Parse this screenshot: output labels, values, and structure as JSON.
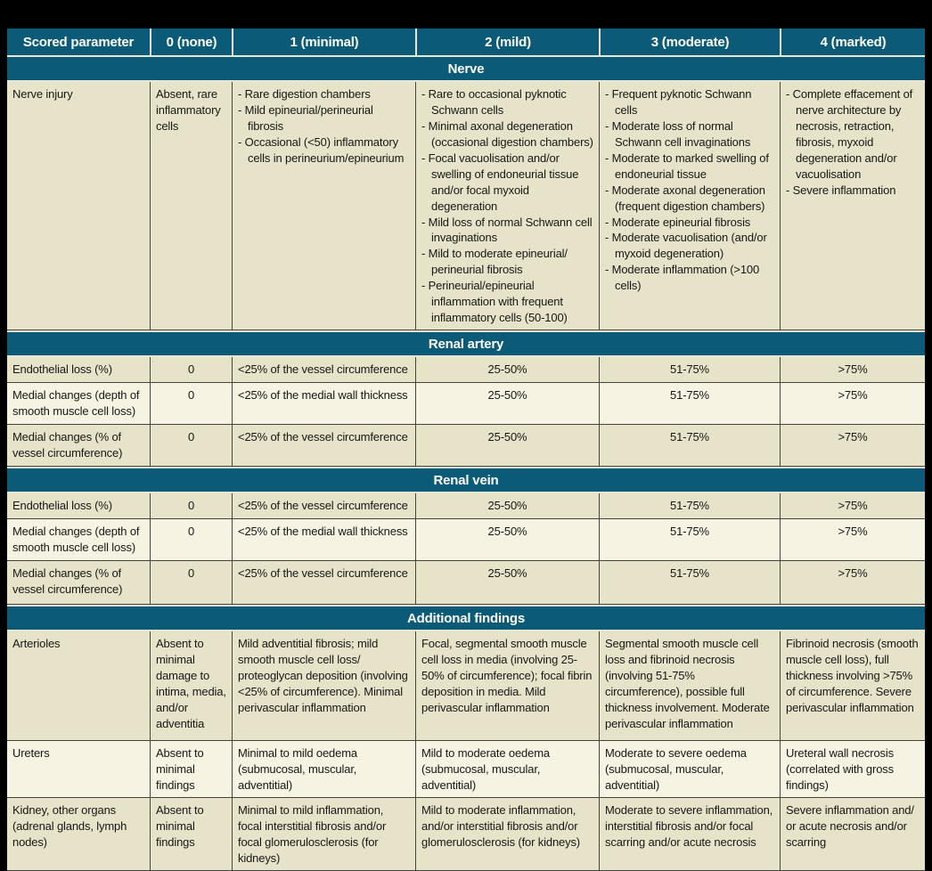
{
  "colors": {
    "teal": "#0b5b78",
    "row_beige": "#e7e3c9",
    "row_cream": "#f6f3e3",
    "frame": "#000000",
    "grid_line": "#45443c"
  },
  "header": {
    "columns": [
      "Scored parameter",
      "0 (none)",
      "1 (minimal)",
      "2 (mild)",
      "3 (moderate)",
      "4 (marked)"
    ]
  },
  "sections": [
    {
      "title": "Nerve",
      "rows": [
        {
          "parameter": "Nerve injury",
          "cells": [
            {
              "text": "Absent, rare inflammatory cells"
            },
            {
              "bullets": [
                "Rare digestion chambers",
                "Mild epineurial/perineurial fibrosis",
                "Occasional (<50) inflammatory cells in perineurium/epineurium"
              ]
            },
            {
              "bullets": [
                "Rare to occasional pyknotic Schwann cells",
                "Minimal axonal degeneration (occasional digestion chambers)",
                "Focal vacuolisation and/or swelling of endoneurial tissue and/or focal myxoid degeneration",
                "Mild loss of normal Schwann cell invaginations",
                "Mild to moderate epineurial/ perineurial fibrosis",
                "Perineurial/epineurial inflammation with frequent inflammatory cells (50-100)"
              ]
            },
            {
              "bullets": [
                "Frequent pyknotic Schwann cells",
                "Moderate loss of normal Schwann cell invaginations",
                "Moderate to marked swelling of endoneurial tissue",
                "Moderate axonal degeneration (frequent digestion chambers)",
                "Moderate epineurial fibrosis",
                "Moderate vacuolisation (and/or myxoid degeneration)",
                "Moderate inflammation (>100 cells)"
              ]
            },
            {
              "bullets": [
                "Complete effacement of nerve architecture by necrosis, retraction, fibrosis, myxoid degeneration and/or vacuolisation",
                "Severe inflammation"
              ]
            }
          ]
        }
      ]
    },
    {
      "title": "Renal artery",
      "rows": [
        {
          "parameter": "Endothelial loss (%)",
          "cells": [
            {
              "text": "0",
              "align": "center"
            },
            {
              "text": "<25% of the vessel circumference"
            },
            {
              "text": "25-50%",
              "align": "center"
            },
            {
              "text": "51-75%",
              "align": "center"
            },
            {
              "text": ">75%",
              "align": "center"
            }
          ]
        },
        {
          "parameter": "Medial changes  (depth of smooth muscle cell loss)",
          "cells": [
            {
              "text": "0",
              "align": "center"
            },
            {
              "text": "<25% of the medial wall thickness"
            },
            {
              "text": "25-50%",
              "align": "center"
            },
            {
              "text": "51-75%",
              "align": "center"
            },
            {
              "text": ">75%",
              "align": "center"
            }
          ]
        },
        {
          "parameter": "Medial changes (% of vessel circumference)",
          "cells": [
            {
              "text": "0",
              "align": "center"
            },
            {
              "text": "<25% of the vessel circumference"
            },
            {
              "text": "25-50%",
              "align": "center"
            },
            {
              "text": "51-75%",
              "align": "center"
            },
            {
              "text": ">75%",
              "align": "center"
            }
          ]
        }
      ]
    },
    {
      "title": "Renal vein",
      "rows": [
        {
          "parameter": "Endothelial loss (%)",
          "cells": [
            {
              "text": "0",
              "align": "center"
            },
            {
              "text": "<25% of the vessel circumference"
            },
            {
              "text": "25-50%",
              "align": "center"
            },
            {
              "text": "51-75%",
              "align": "center"
            },
            {
              "text": ">75%",
              "align": "center"
            }
          ]
        },
        {
          "parameter": "Medial changes (depth of smooth muscle cell loss)",
          "cells": [
            {
              "text": "0",
              "align": "center"
            },
            {
              "text": "<25% of the medial wall thickness"
            },
            {
              "text": "25-50%",
              "align": "center"
            },
            {
              "text": "51-75%",
              "align": "center"
            },
            {
              "text": ">75%",
              "align": "center"
            }
          ]
        },
        {
          "parameter": "Medial changes (% of vessel circumference)",
          "cells": [
            {
              "text": "0",
              "align": "center"
            },
            {
              "text": "<25% of the vessel circumference"
            },
            {
              "text": "25-50%",
              "align": "center"
            },
            {
              "text": "51-75%",
              "align": "center"
            },
            {
              "text": ">75%",
              "align": "center"
            }
          ]
        }
      ]
    },
    {
      "title": "Additional findings",
      "rows": [
        {
          "parameter": "Arterioles",
          "cells": [
            {
              "text": "Absent to minimal damage to intima, media, and/or adventitia"
            },
            {
              "text": "Mild adventitial fibrosis; mild smooth muscle cell loss/ proteoglycan deposition (involving <25% of circumference). Minimal perivascular inflammation"
            },
            {
              "text": "Focal, segmental smooth muscle cell loss in media (involving 25-50% of circumference); focal fibrin deposition in media. Mild perivascular inflammation"
            },
            {
              "text": "Segmental smooth muscle cell loss and fibrinoid necrosis (involving 51-75% circumference), possible full thickness involvement. Moderate perivascular inflammation"
            },
            {
              "text": "Fibrinoid necrosis (smooth muscle cell loss), full thickness involving >75% of circumference. Severe perivascular inflammation"
            }
          ]
        },
        {
          "parameter": "Ureters",
          "cells": [
            {
              "text": "Absent to minimal findings"
            },
            {
              "text": "Minimal to mild oedema (submucosal, muscular, adventitial)"
            },
            {
              "text": "Mild to moderate oedema (submucosal, muscular, adventitial)"
            },
            {
              "text": "Moderate to severe oedema (submucosal, muscular, adventitial)"
            },
            {
              "text": "Ureteral wall necrosis (correlated with gross findings)"
            }
          ]
        },
        {
          "parameter": "Kidney, other organs (adrenal glands, lymph nodes)",
          "cells": [
            {
              "text": "Absent to minimal findings"
            },
            {
              "text": "Minimal to mild inflammation, focal interstitial fibrosis and/or focal glomerulosclerosis (for kidneys)"
            },
            {
              "text": "Mild to moderate inflammation, and/or interstitial fibrosis and/or glomerulosclerosis (for kidneys)"
            },
            {
              "text": "Moderate to severe inflammation, interstitial fibrosis and/or focal scarring and/or acute necrosis"
            },
            {
              "text": "Severe inflammation and/ or acute necrosis and/or scarring"
            }
          ]
        }
      ]
    }
  ]
}
